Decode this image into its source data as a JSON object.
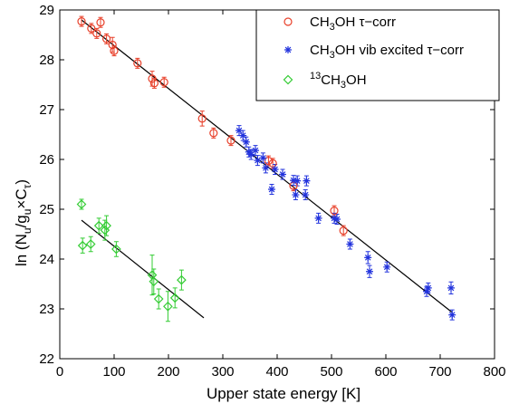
{
  "chart_data": {
    "type": "scatter",
    "title": "",
    "xlabel": "Upper state energy [K]",
    "ylabel_parts": {
      "pre": "ln  (N",
      "s1": "u",
      "mid1": "/g",
      "s2": "u",
      "mid2": "×C",
      "s3": "τ",
      "post": ")"
    },
    "xlim": [
      0,
      800
    ],
    "ylim": [
      22,
      29
    ],
    "xticks": [
      0,
      100,
      200,
      300,
      400,
      500,
      600,
      700,
      800
    ],
    "yticks": [
      22,
      23,
      24,
      25,
      26,
      27,
      28,
      29
    ],
    "grid": false,
    "legend_position": "top-right",
    "series": [
      {
        "name_parts": {
          "a": "CH",
          "b": "3",
          "c": "OH τ−corr"
        },
        "marker": "circle",
        "color": "#e8402a",
        "x": [
          40,
          58,
          68,
          75,
          86,
          97,
          100,
          143,
          170,
          174,
          192,
          262,
          283,
          315,
          384,
          392,
          430,
          505,
          522
        ],
        "y": [
          28.77,
          28.63,
          28.53,
          28.75,
          28.42,
          28.3,
          28.18,
          27.93,
          27.62,
          27.53,
          27.55,
          26.82,
          26.53,
          26.38,
          25.97,
          25.92,
          25.47,
          24.97,
          24.57
        ],
        "err": [
          0.1,
          0.1,
          0.1,
          0.1,
          0.1,
          0.15,
          0.1,
          0.1,
          0.15,
          0.1,
          0.1,
          0.15,
          0.1,
          0.1,
          0.1,
          0.1,
          0.1,
          0.1,
          0.1
        ]
      },
      {
        "name_parts": {
          "a": "CH",
          "b": "3",
          "c": "OH vib excited τ−corr"
        },
        "marker": "star",
        "color": "#2233dd",
        "x": [
          330,
          337,
          343,
          348,
          352,
          360,
          364,
          374,
          379,
          390,
          396,
          410,
          430,
          434,
          437,
          452,
          454,
          476,
          505,
          510,
          534,
          567,
          570,
          602,
          675,
          678,
          720,
          722
        ],
        "y": [
          26.58,
          26.48,
          26.35,
          26.15,
          26.1,
          26.18,
          25.98,
          26.03,
          25.83,
          25.4,
          25.8,
          25.7,
          25.58,
          25.29,
          25.57,
          25.29,
          25.57,
          24.82,
          24.82,
          24.8,
          24.3,
          24.03,
          23.75,
          23.84,
          23.35,
          23.42,
          23.42,
          22.88
        ],
        "err": [
          0.1,
          0.1,
          0.1,
          0.1,
          0.1,
          0.1,
          0.1,
          0.1,
          0.1,
          0.1,
          0.1,
          0.1,
          0.1,
          0.1,
          0.1,
          0.1,
          0.1,
          0.1,
          0.1,
          0.1,
          0.1,
          0.12,
          0.12,
          0.1,
          0.1,
          0.1,
          0.12,
          0.1
        ]
      },
      {
        "name_parts": {
          "sup": "13",
          "a": "CH",
          "b": "3",
          "c": "OH"
        },
        "marker": "diamond",
        "color": "#33cc33",
        "x": [
          40,
          42,
          57,
          72,
          83,
          86,
          104,
          170,
          173,
          182,
          199,
          212,
          224
        ],
        "y": [
          25.1,
          24.27,
          24.3,
          24.67,
          24.58,
          24.67,
          24.2,
          23.68,
          23.55,
          23.2,
          23.05,
          23.22,
          23.58
        ],
        "err": [
          0.1,
          0.15,
          0.15,
          0.15,
          0.2,
          0.2,
          0.15,
          0.4,
          0.25,
          0.2,
          0.3,
          0.2,
          0.2
        ]
      }
    ],
    "fits": [
      {
        "x": [
          40,
          722
        ],
        "y": [
          28.8,
          22.93
        ]
      },
      {
        "x": [
          40,
          265
        ],
        "y": [
          24.78,
          22.82
        ]
      }
    ]
  }
}
